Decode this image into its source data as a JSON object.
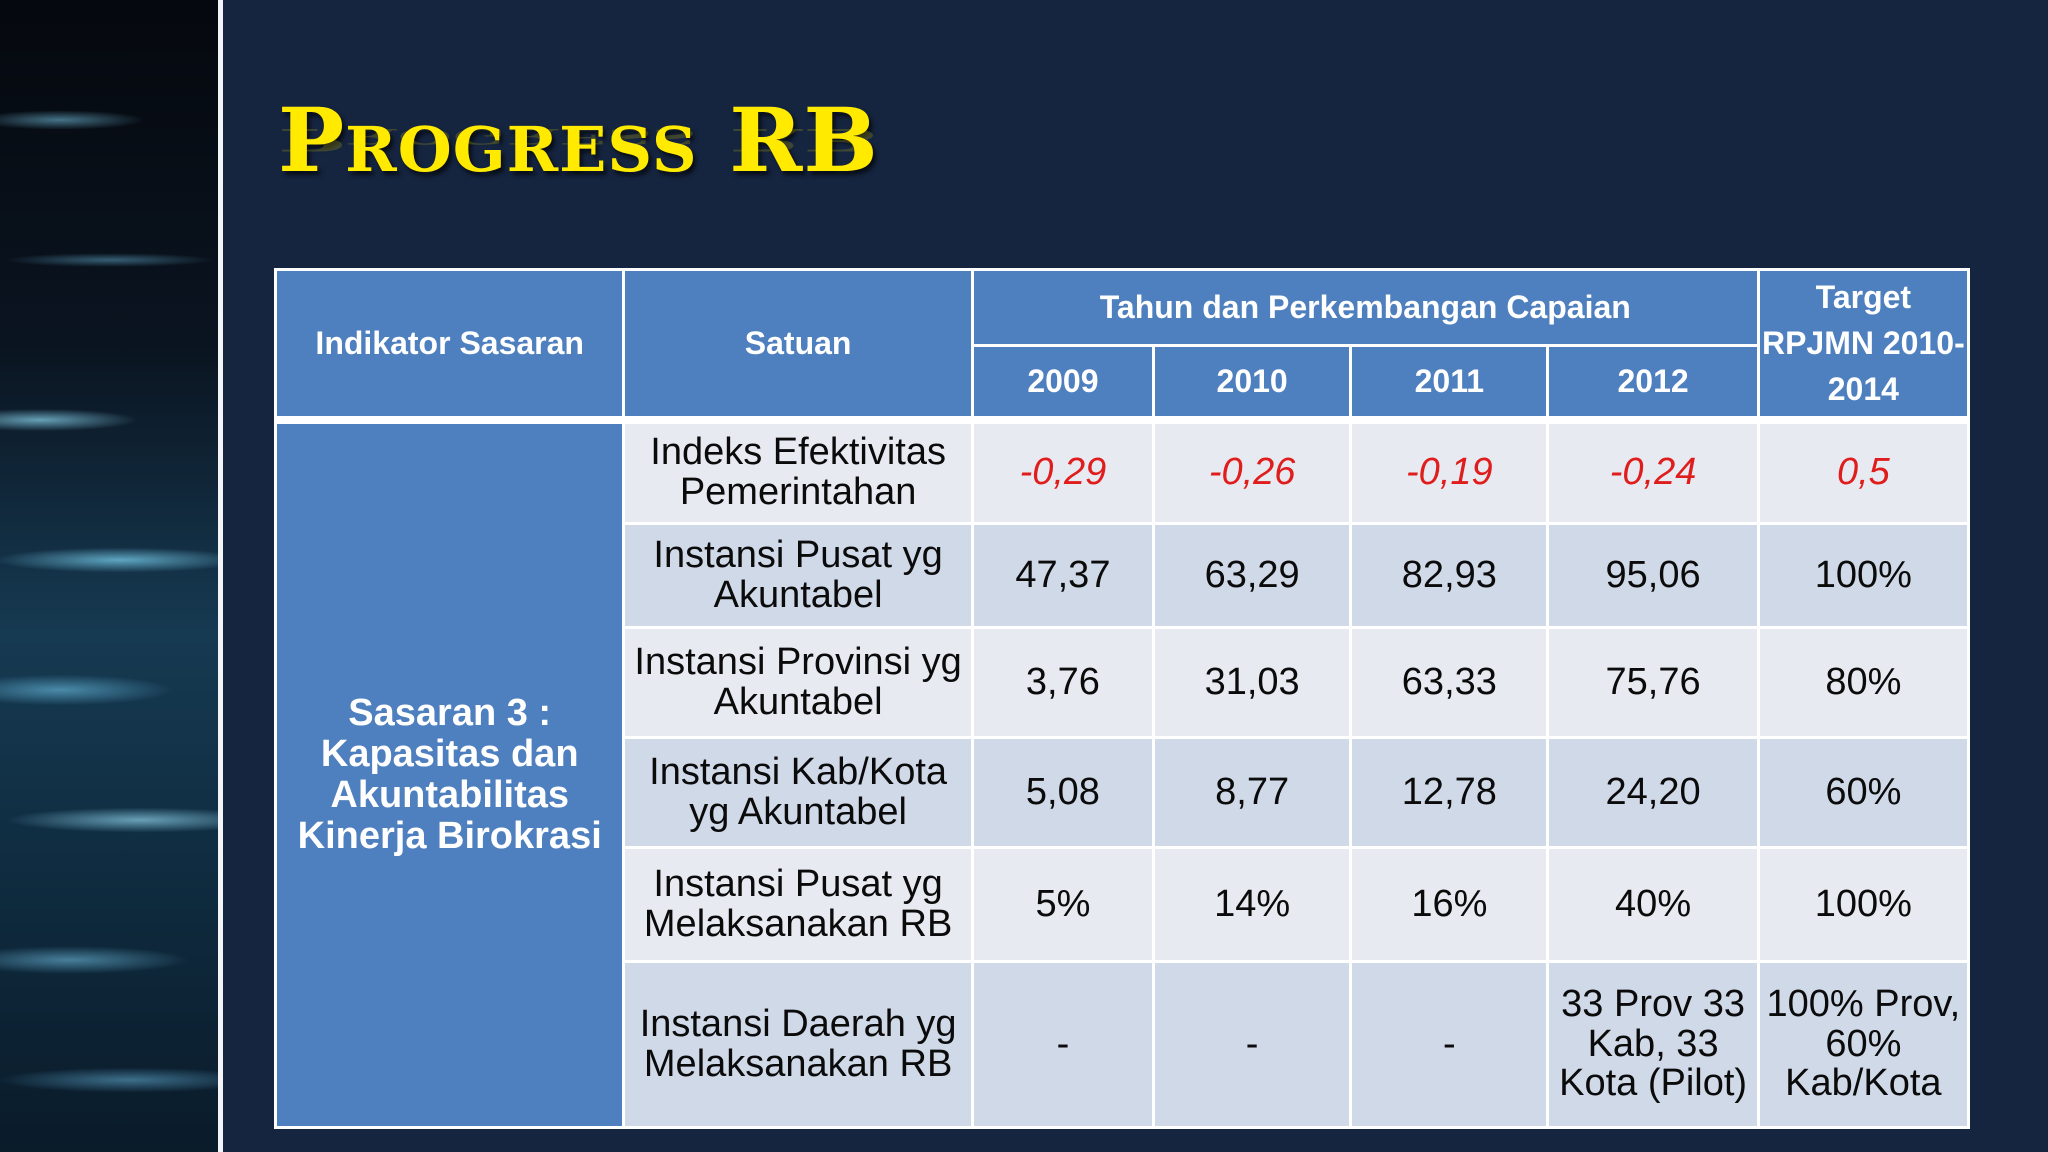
{
  "slide": {
    "title": "Progress RB"
  },
  "table": {
    "headers": {
      "indikator": "Indikator Sasaran",
      "satuan": "Satuan",
      "tahun_group": "Tahun dan Perkembangan Capaian",
      "years": [
        "2009",
        "2010",
        "2011",
        "2012"
      ],
      "target": "Target RPJMN 2010-2014"
    },
    "group_label": "Sasaran 3 : Kapasitas dan Akuntabilitas Kinerja Birokrasi",
    "rows": [
      {
        "indikator": "Indeks Efektivitas Pemerintahan",
        "values": [
          "-0,29",
          "-0,26",
          "-0,19",
          "-0,24"
        ],
        "target": "0,5",
        "highlight": true
      },
      {
        "indikator": "Instansi Pusat yg Akuntabel",
        "values": [
          "47,37",
          "63,29",
          "82,93",
          "95,06"
        ],
        "target": "100%"
      },
      {
        "indikator": "Instansi Provinsi yg Akuntabel",
        "values": [
          "3,76",
          "31,03",
          "63,33",
          "75,76"
        ],
        "target": "80%"
      },
      {
        "indikator": "Instansi Kab/Kota yg Akuntabel",
        "values": [
          "5,08",
          "8,77",
          "12,78",
          "24,20"
        ],
        "target": "60%"
      },
      {
        "indikator": "Instansi Pusat yg Melaksanakan RB",
        "values": [
          "5%",
          "14%",
          "16%",
          "40%"
        ],
        "target": "100%"
      },
      {
        "indikator": "Instansi Daerah yg Melaksanakan RB",
        "values": [
          "-",
          "-",
          "-",
          "33 Prov 33 Kab, 33 Kota (Pilot)"
        ],
        "target": "100% Prov, 60% Kab/Kota"
      }
    ]
  },
  "colors": {
    "background": "#15243f",
    "title": "#ffea00",
    "header_fill": "#4e7fbe",
    "row_light": "#e7eaf0",
    "row_dark": "#d0d9e8",
    "negative_value": "#e01d1d"
  }
}
